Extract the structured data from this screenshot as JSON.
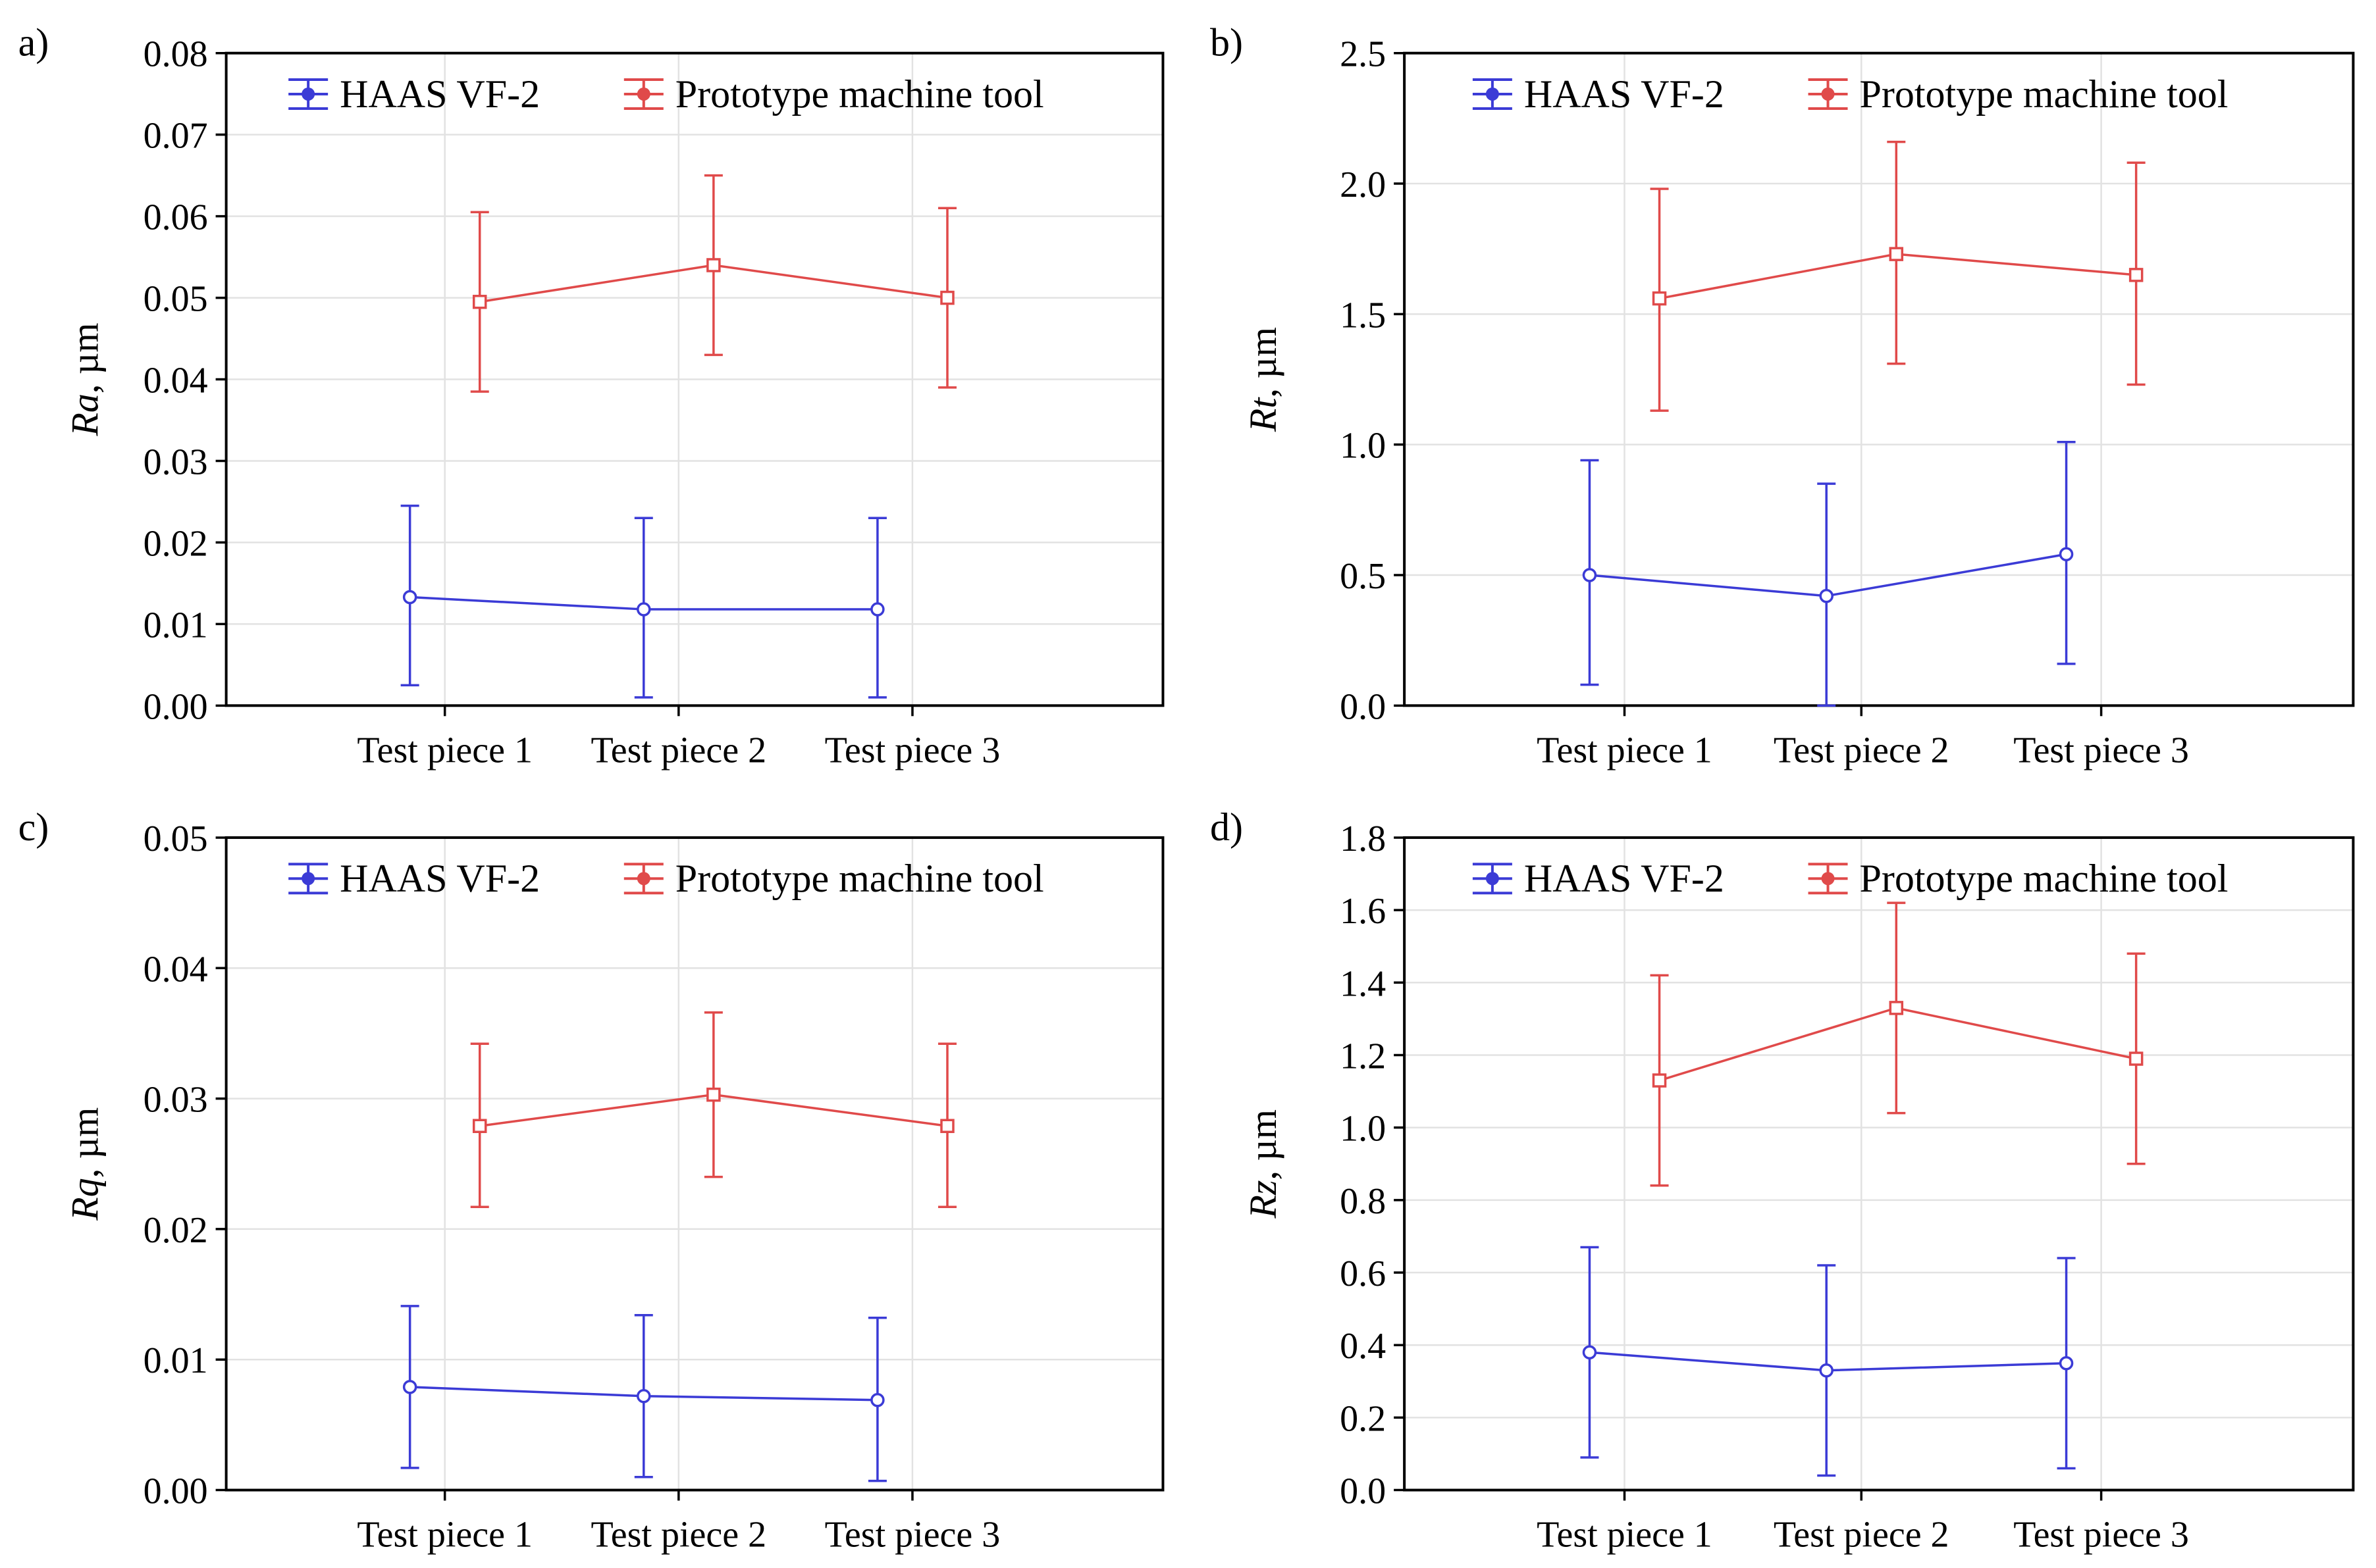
{
  "chart_data": [
    {
      "panel": "a)",
      "type": "line",
      "ylabel_symbol": "Ra",
      "ylabel_unit": ", µm",
      "categories": [
        "Test piece 1",
        "Test piece 2",
        "Test piece 3"
      ],
      "ylim": [
        0,
        0.08
      ],
      "yticks": [
        "0.00",
        "0.01",
        "0.02",
        "0.03",
        "0.04",
        "0.05",
        "0.06",
        "0.07",
        "0.08"
      ],
      "series": [
        {
          "name": "HAAS VF-2",
          "values": [
            0.0133,
            0.0118,
            0.0118
          ],
          "err_low": [
            0.0025,
            0.001,
            0.001
          ],
          "err_high": [
            0.0245,
            0.023,
            0.023
          ]
        },
        {
          "name": "Prototype machine tool",
          "values": [
            0.0495,
            0.054,
            0.05
          ],
          "err_low": [
            0.0385,
            0.043,
            0.039
          ],
          "err_high": [
            0.0605,
            0.065,
            0.061
          ]
        }
      ]
    },
    {
      "panel": "b)",
      "type": "line",
      "ylabel_symbol": "Rt",
      "ylabel_unit": ", µm",
      "categories": [
        "Test piece 1",
        "Test piece 2",
        "Test piece 3"
      ],
      "ylim": [
        0,
        2.5
      ],
      "yticks": [
        "0.0",
        "0.5",
        "1.0",
        "1.5",
        "2.0",
        "2.5"
      ],
      "series": [
        {
          "name": "HAAS VF-2",
          "values": [
            0.5,
            0.42,
            0.58
          ],
          "err_low": [
            0.08,
            0.0,
            0.16
          ],
          "err_high": [
            0.94,
            0.85,
            1.01
          ]
        },
        {
          "name": "Prototype machine tool",
          "values": [
            1.56,
            1.73,
            1.65
          ],
          "err_low": [
            1.13,
            1.31,
            1.23
          ],
          "err_high": [
            1.98,
            2.16,
            2.08
          ]
        }
      ]
    },
    {
      "panel": "c)",
      "type": "line",
      "ylabel_symbol": "Rq",
      "ylabel_unit": ", µm",
      "categories": [
        "Test piece 1",
        "Test piece 2",
        "Test piece 3"
      ],
      "ylim": [
        0,
        0.05
      ],
      "yticks": [
        "0.00",
        "0.01",
        "0.02",
        "0.03",
        "0.04",
        "0.05"
      ],
      "series": [
        {
          "name": "HAAS VF-2",
          "values": [
            0.0079,
            0.0072,
            0.0069
          ],
          "err_low": [
            0.0017,
            0.001,
            0.0007
          ],
          "err_high": [
            0.0141,
            0.0134,
            0.0132
          ]
        },
        {
          "name": "Prototype machine tool",
          "values": [
            0.0279,
            0.0303,
            0.0279
          ],
          "err_low": [
            0.0217,
            0.024,
            0.0217
          ],
          "err_high": [
            0.0342,
            0.0366,
            0.0342
          ]
        }
      ]
    },
    {
      "panel": "d)",
      "type": "line",
      "ylabel_symbol": "Rz",
      "ylabel_unit": ", µm",
      "categories": [
        "Test piece 1",
        "Test piece 2",
        "Test piece 3"
      ],
      "ylim": [
        0,
        1.8
      ],
      "yticks": [
        "0.0",
        "0.2",
        "0.4",
        "0.6",
        "0.8",
        "1.0",
        "1.2",
        "1.4",
        "1.6",
        "1.8"
      ],
      "series": [
        {
          "name": "HAAS VF-2",
          "values": [
            0.38,
            0.33,
            0.35
          ],
          "err_low": [
            0.09,
            0.04,
            0.06
          ],
          "err_high": [
            0.67,
            0.62,
            0.64
          ]
        },
        {
          "name": "Prototype machine tool",
          "values": [
            1.13,
            1.33,
            1.19
          ],
          "err_low": [
            0.84,
            1.04,
            0.9
          ],
          "err_high": [
            1.42,
            1.62,
            1.48
          ]
        }
      ]
    }
  ],
  "colors": {
    "haas": "#3b3bd6",
    "prototype": "#e04a4a"
  }
}
